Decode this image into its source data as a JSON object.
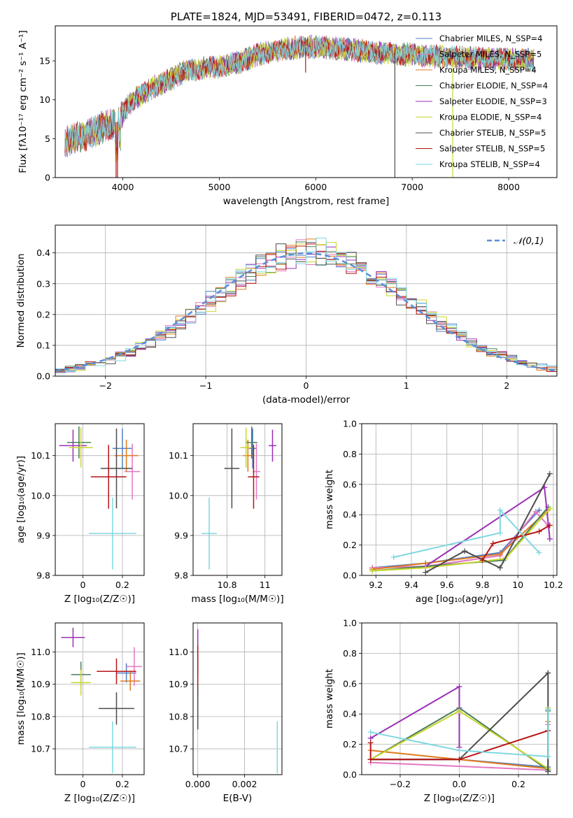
{
  "chart_data": [
    {
      "id": "spectrum",
      "type": "line",
      "title": "PLATE=1824, MJD=53491, FIBERID=0472, z=0.113",
      "xlabel": "wavelength [Angstrom, rest frame]",
      "ylabel": "Flux [fλ10⁻¹⁷ erg cm⁻² s⁻¹ A⁻¹]",
      "xlim": [
        3300,
        8500
      ],
      "ylim": [
        0,
        19.5
      ],
      "xticks": [
        4000,
        5000,
        6000,
        7000,
        8000
      ],
      "yticks": [
        0,
        5,
        10,
        15
      ],
      "grid": false,
      "legend_position": "upper-right",
      "legend": [
        {
          "label": "Chabrier MILES, N_SSP=4",
          "color": "#4f7fc9"
        },
        {
          "label": "Salpeter MILES, N_SSP=5",
          "color": "#e377c2"
        },
        {
          "label": "Kroupa MILES, N_SSP=4",
          "color": "#e07b1f"
        },
        {
          "label": "Chabrier ELODIE, N_SSP=4",
          "color": "#4a7f5a"
        },
        {
          "label": "Salpeter ELODIE, N_SSP=3",
          "color": "#9b30b5"
        },
        {
          "label": "Kroupa ELODIE, N_SSP=4",
          "color": "#c9d62f"
        },
        {
          "label": "Chabrier STELIB, N_SSP=5",
          "color": "#4d4d4d"
        },
        {
          "label": "Salpeter STELIB, N_SSP=5",
          "color": "#b81414"
        },
        {
          "label": "Kroupa STELIB, N_SSP=4",
          "color": "#7fd8e0"
        }
      ],
      "envelope": {
        "x": [
          3380,
          3450,
          3550,
          3650,
          3750,
          3850,
          3950,
          4050,
          4150,
          4300,
          4450,
          4600,
          4800,
          5000,
          5200,
          5400,
          5600,
          5800,
          6000,
          6200,
          6400,
          6600,
          6800,
          7000,
          7200,
          7400,
          7600,
          7800,
          8000,
          8200,
          8300
        ],
        "y": [
          4.6,
          4.8,
          5.2,
          5.6,
          6.2,
          6.8,
          7.2,
          9.2,
          10.3,
          11.5,
          12.3,
          13.4,
          14.0,
          14.2,
          14.8,
          15.8,
          16.3,
          16.7,
          16.8,
          16.6,
          16.4,
          16.1,
          16.0,
          15.8,
          15.6,
          15.5,
          15.4,
          15.3,
          15.2,
          15.1,
          15.0
        ]
      }
    },
    {
      "id": "residuals",
      "type": "histogram",
      "xlabel": "(data-model)/error",
      "ylabel": "Normed distribution",
      "xlim": [
        -2.5,
        2.5
      ],
      "ylim": [
        0,
        0.49
      ],
      "xticks": [
        -2,
        -1,
        0,
        1,
        2
      ],
      "xticklabels": [
        "−2",
        "−1",
        "0",
        "1",
        "2"
      ],
      "yticks": [
        0.0,
        0.1,
        0.2,
        0.3,
        0.4
      ],
      "grid": true,
      "legend_position": "upper-right",
      "reference_curve": {
        "label": "𝒩(0,1)",
        "color": "#5b8fd9"
      },
      "bin_width": 0.1
    },
    {
      "id": "age-vs-Z",
      "type": "scatter",
      "xlabel": "Z [log₁₀(Z/Z☉)]",
      "ylabel": "age [log₁₀(age/yr)]",
      "xlim": [
        -0.14,
        0.31
      ],
      "ylim": [
        9.8,
        10.18
      ],
      "xticks": [
        0.0,
        0.2
      ],
      "yticks": [
        9.8,
        9.9,
        10.0,
        10.1
      ],
      "grid": true,
      "points": [
        {
          "x": 0.2,
          "y": 10.118,
          "xerr": 0.05,
          "yerr": 0.05,
          "color": "#4f7fc9"
        },
        {
          "x": 0.25,
          "y": 10.06,
          "xerr": 0.04,
          "yerr": 0.07,
          "color": "#e377c2"
        },
        {
          "x": 0.22,
          "y": 10.1,
          "xerr": 0.06,
          "yerr": 0.04,
          "color": "#e07b1f"
        },
        {
          "x": -0.02,
          "y": 10.133,
          "xerr": 0.06,
          "yerr": 0.04,
          "color": "#4a7f5a"
        },
        {
          "x": -0.05,
          "y": 10.125,
          "xerr": 0.07,
          "yerr": 0.04,
          "color": "#9b30b5"
        },
        {
          "x": -0.01,
          "y": 10.12,
          "xerr": 0.06,
          "yerr": 0.05,
          "color": "#c9d62f"
        },
        {
          "x": 0.17,
          "y": 10.068,
          "xerr": 0.08,
          "yerr": 0.1,
          "color": "#4d4d4d"
        },
        {
          "x": 0.13,
          "y": 10.047,
          "xerr": 0.09,
          "yerr": 0.08,
          "color": "#b81414"
        },
        {
          "x": 0.15,
          "y": 9.905,
          "xerr": 0.12,
          "yerr": 0.09,
          "color": "#7fd8e0"
        }
      ]
    },
    {
      "id": "age-vs-mass",
      "type": "scatter",
      "xlabel": "mass [log₁₀(M/M☉)]",
      "ylabel": "",
      "xlim": [
        10.62,
        11.09
      ],
      "ylim": [
        9.8,
        10.18
      ],
      "xticks": [
        10.8,
        11.0
      ],
      "yticks": [
        9.8,
        9.9,
        10.0,
        10.1
      ],
      "grid": true,
      "points": [
        {
          "x": 10.935,
          "y": 10.118,
          "xerr": 0.02,
          "yerr": 0.05,
          "color": "#4f7fc9"
        },
        {
          "x": 10.955,
          "y": 10.06,
          "xerr": 0.02,
          "yerr": 0.07,
          "color": "#e377c2"
        },
        {
          "x": 10.91,
          "y": 10.1,
          "xerr": 0.025,
          "yerr": 0.04,
          "color": "#e07b1f"
        },
        {
          "x": 10.93,
          "y": 10.133,
          "xerr": 0.03,
          "yerr": 0.04,
          "color": "#4a7f5a"
        },
        {
          "x": 11.04,
          "y": 10.125,
          "xerr": 0.02,
          "yerr": 0.04,
          "color": "#9b30b5"
        },
        {
          "x": 10.9,
          "y": 10.12,
          "xerr": 0.03,
          "yerr": 0.05,
          "color": "#c9d62f"
        },
        {
          "x": 10.825,
          "y": 10.068,
          "xerr": 0.04,
          "yerr": 0.1,
          "color": "#4d4d4d"
        },
        {
          "x": 10.94,
          "y": 10.047,
          "xerr": 0.03,
          "yerr": 0.08,
          "color": "#b81414"
        },
        {
          "x": 10.705,
          "y": 9.905,
          "xerr": 0.04,
          "yerr": 0.09,
          "color": "#7fd8e0"
        }
      ]
    },
    {
      "id": "weight-vs-age",
      "type": "line",
      "xlabel": "age [log₁₀(age/yr)]",
      "ylabel": "mass weight",
      "xlim": [
        9.12,
        10.22
      ],
      "ylim": [
        0,
        1.0
      ],
      "xticks": [
        9.2,
        9.4,
        9.6,
        9.8,
        10.0,
        10.2
      ],
      "yticks": [
        0.0,
        0.2,
        0.4,
        0.6,
        0.8,
        1.0
      ],
      "grid": true,
      "series": [
        {
          "color": "#4f7fc9",
          "x": [
            9.18,
            9.48,
            9.9,
            10.12
          ],
          "y": [
            0.05,
            0.08,
            0.15,
            0.43
          ]
        },
        {
          "color": "#e377c2",
          "x": [
            9.18,
            9.48,
            9.9,
            10.1,
            10.17
          ],
          "y": [
            0.05,
            0.06,
            0.13,
            0.42,
            0.33
          ]
        },
        {
          "color": "#e07b1f",
          "x": [
            9.18,
            9.48,
            9.9,
            10.17
          ],
          "y": [
            0.04,
            0.08,
            0.14,
            0.43
          ]
        },
        {
          "color": "#4a7f5a",
          "x": [
            9.18,
            9.48,
            9.92,
            10.17
          ],
          "y": [
            0.03,
            0.06,
            0.1,
            0.45
          ]
        },
        {
          "color": "#9b30b5",
          "x": [
            9.48,
            10.15,
            10.18
          ],
          "y": [
            0.06,
            0.58,
            0.24
          ]
        },
        {
          "color": "#c9d62f",
          "x": [
            9.18,
            9.48,
            9.93,
            10.18
          ],
          "y": [
            0.03,
            0.05,
            0.11,
            0.44
          ]
        },
        {
          "color": "#4d4d4d",
          "x": [
            9.48,
            9.7,
            9.9,
            10.18
          ],
          "y": [
            0.02,
            0.16,
            0.05,
            0.67
          ]
        },
        {
          "color": "#b81414",
          "x": [
            9.8,
            9.86,
            10.12,
            10.18
          ],
          "y": [
            0.1,
            0.21,
            0.29,
            0.33
          ]
        },
        {
          "color": "#7fd8e0",
          "x": [
            9.3,
            9.9,
            9.9,
            10.12
          ],
          "y": [
            0.12,
            0.28,
            0.43,
            0.15
          ]
        }
      ]
    },
    {
      "id": "mass-vs-Z",
      "type": "scatter",
      "xlabel": "Z [log₁₀(Z/Z☉)]",
      "ylabel": "mass [log₁₀(M/M☉)]",
      "xlim": [
        -0.14,
        0.31
      ],
      "ylim": [
        10.62,
        11.09
      ],
      "xticks": [
        0.0,
        0.2
      ],
      "yticks": [
        10.7,
        10.8,
        10.9,
        11.0
      ],
      "grid": true,
      "points": [
        {
          "x": 0.22,
          "y": 10.935,
          "xerr": 0.05,
          "yerr": 0.03,
          "color": "#4f7fc9"
        },
        {
          "x": 0.26,
          "y": 10.955,
          "xerr": 0.04,
          "yerr": 0.06,
          "color": "#e377c2"
        },
        {
          "x": 0.24,
          "y": 10.91,
          "xerr": 0.05,
          "yerr": 0.03,
          "color": "#e07b1f"
        },
        {
          "x": -0.01,
          "y": 10.93,
          "xerr": 0.05,
          "yerr": 0.04,
          "color": "#4a7f5a"
        },
        {
          "x": -0.05,
          "y": 11.045,
          "xerr": 0.06,
          "yerr": 0.03,
          "color": "#9b30b5"
        },
        {
          "x": -0.01,
          "y": 10.905,
          "xerr": 0.05,
          "yerr": 0.04,
          "color": "#c9d62f"
        },
        {
          "x": 0.17,
          "y": 10.825,
          "xerr": 0.09,
          "yerr": 0.05,
          "color": "#4d4d4d"
        },
        {
          "x": 0.17,
          "y": 10.94,
          "xerr": 0.1,
          "yerr": 0.04,
          "color": "#b81414"
        },
        {
          "x": 0.15,
          "y": 10.705,
          "xerr": 0.12,
          "yerr": 0.08,
          "color": "#7fd8e0"
        }
      ]
    },
    {
      "id": "mass-vs-ebv",
      "type": "scatter",
      "xlabel": "E(B-V)",
      "ylabel": "",
      "xlim": [
        -0.0002,
        0.0036
      ],
      "ylim": [
        10.62,
        11.09
      ],
      "xticks": [
        0.0,
        0.002
      ],
      "xticklabels": [
        "0.000",
        "0.002"
      ],
      "yticks": [
        10.7,
        10.8,
        10.9,
        11.0
      ],
      "grid": true,
      "points": [
        {
          "x": 0.0,
          "y": 11.0,
          "xerr": 0.0,
          "yerr": 0.07,
          "color": "#9b30b5"
        },
        {
          "x": 0.0,
          "y": 10.94,
          "xerr": 0.0,
          "yerr": 0.08,
          "color": "#b81414"
        },
        {
          "x": 0.0,
          "y": 10.83,
          "xerr": 0.0,
          "yerr": 0.07,
          "color": "#4d4d4d"
        },
        {
          "x": 0.0034,
          "y": 10.705,
          "xerr": 0.0,
          "yerr": 0.08,
          "color": "#7fd8e0"
        }
      ]
    },
    {
      "id": "weight-vs-Z",
      "type": "line",
      "xlabel": "Z [log₁₀(Z/Z☉)]",
      "ylabel": "mass weight",
      "xlim": [
        -0.33,
        0.33
      ],
      "ylim": [
        0,
        1.0
      ],
      "xticks": [
        -0.2,
        0.0,
        0.2
      ],
      "xticklabels": [
        "−0.2",
        "0.0",
        "0.2"
      ],
      "yticks": [
        0.0,
        0.2,
        0.4,
        0.6,
        0.8,
        1.0
      ],
      "grid": true,
      "series": [
        {
          "color": "#4f7fc9",
          "x": [
            -0.3,
            0.0,
            0.3,
            0.3
          ],
          "y": [
            0.1,
            0.1,
            0.05,
            0.43
          ]
        },
        {
          "color": "#e377c2",
          "x": [
            -0.3,
            0.3,
            0.3
          ],
          "y": [
            0.08,
            0.03,
            0.33
          ]
        },
        {
          "color": "#e07b1f",
          "x": [
            -0.3,
            0.0,
            0.3,
            0.3
          ],
          "y": [
            0.16,
            0.1,
            0.04,
            0.35
          ]
        },
        {
          "color": "#4a7f5a",
          "x": [
            -0.3,
            0.0,
            0.3,
            0.3
          ],
          "y": [
            0.1,
            0.44,
            0.03,
            0.42
          ]
        },
        {
          "color": "#9b30b5",
          "x": [
            -0.3,
            0.0,
            0.0
          ],
          "y": [
            0.24,
            0.58,
            0.18
          ]
        },
        {
          "color": "#c9d62f",
          "x": [
            -0.3,
            0.0,
            0.3,
            0.3
          ],
          "y": [
            0.1,
            0.42,
            0.04,
            0.44
          ]
        },
        {
          "color": "#4d4d4d",
          "x": [
            -0.3,
            0.0,
            0.3,
            0.3
          ],
          "y": [
            0.1,
            0.1,
            0.67,
            0.02
          ]
        },
        {
          "color": "#b81414",
          "x": [
            -0.3,
            -0.3,
            0.0,
            0.3
          ],
          "y": [
            0.21,
            0.1,
            0.1,
            0.29
          ]
        },
        {
          "color": "#7fd8e0",
          "x": [
            -0.3,
            0.0,
            0.3,
            0.3
          ],
          "y": [
            0.28,
            0.16,
            0.12,
            0.43
          ]
        }
      ]
    }
  ]
}
